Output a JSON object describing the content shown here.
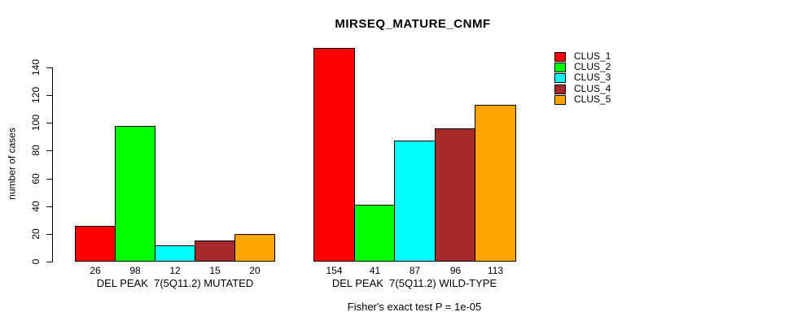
{
  "title": "MIRSEQ_MATURE_CNMF",
  "y_axis": {
    "label": "number of cases"
  },
  "footer": {
    "caption": "Fisher's exact test P = 1e-05"
  },
  "chart_data": {
    "type": "bar",
    "title": "MIRSEQ_MATURE_CNMF",
    "ylabel": "number of cases",
    "xlabel": "",
    "categories": [
      "DEL PEAK  7(5Q11.2) MUTATED",
      "DEL PEAK  7(5Q11.2) WILD-TYPE"
    ],
    "series": [
      {
        "name": "CLUS_1",
        "color": "#ff0000",
        "values": [
          26,
          154
        ]
      },
      {
        "name": "CLUS_2",
        "color": "#00ff00",
        "values": [
          98,
          41
        ]
      },
      {
        "name": "CLUS_3",
        "color": "#00ffff",
        "values": [
          12,
          87
        ]
      },
      {
        "name": "CLUS_4",
        "color": "#a52a2a",
        "values": [
          15,
          96
        ]
      },
      {
        "name": "CLUS_5",
        "color": "#ffa500",
        "values": [
          20,
          113
        ]
      }
    ],
    "bar_value_labels": [
      [
        26,
        98,
        12,
        15,
        20
      ],
      [
        154,
        41,
        87,
        96,
        113
      ]
    ],
    "yticks": [
      0,
      20,
      40,
      60,
      80,
      100,
      120,
      140
    ],
    "ylim": [
      0,
      154
    ],
    "grid": false,
    "legend_position": "top-right",
    "annotation": "Fisher's exact test P = 1e-05"
  }
}
